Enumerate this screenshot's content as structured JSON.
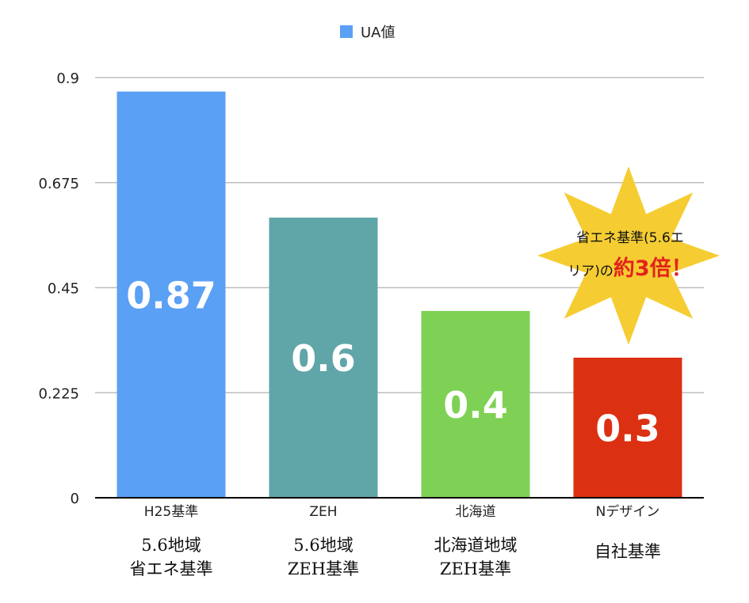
{
  "chart_data": {
    "type": "bar",
    "legend": {
      "label": "UA値",
      "color": "#5aa0f5",
      "position": "top-center"
    },
    "categories": [
      "H25基準",
      "ZEH",
      "北海道",
      "Nデザイン"
    ],
    "values": [
      0.87,
      0.6,
      0.4,
      0.3
    ],
    "value_labels": [
      "0.87",
      "0.6",
      "0.4",
      "0.3"
    ],
    "bar_colors": [
      "#5aa0f5",
      "#60a5a8",
      "#7ed154",
      "#dc3012"
    ],
    "yticks": [
      "0",
      "0.225",
      "0.45",
      "0.675",
      "0.9"
    ],
    "ylim": [
      0,
      0.9
    ],
    "grid": true,
    "sublabels": [
      [
        "5.6地域",
        "省エネ基準"
      ],
      [
        "5.6地域",
        "ZEH基準"
      ],
      [
        "北海道地域",
        "ZEH基準"
      ],
      [
        "自社基準"
      ]
    ],
    "annotation": {
      "shape": "starburst",
      "color": "#f5cd33",
      "line1": "省エネ基準(5.6エ",
      "line2_prefix": "リア)の",
      "line2_emphasis": "約3倍！",
      "emphasis_color": "#e2231a"
    }
  }
}
